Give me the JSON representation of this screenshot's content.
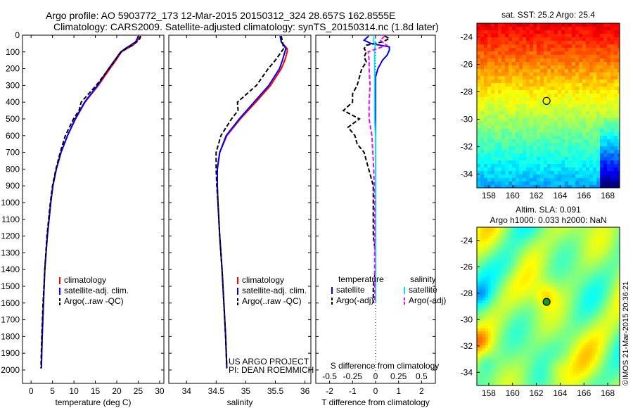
{
  "header": {
    "line1": "Argo profile: AO 5903772_173 12-Mar-2015 20150312_324 28.657S 162.8555E",
    "line2": "Climatology: CARS2009. Satellite-adjusted climatology: synTS_20150314.nc (1.8d later)"
  },
  "credit": "©IMOS 21-Mar-2015 20:36:21",
  "colors": {
    "climatology": "#ff0000",
    "satellite": "#0000ff",
    "argo": "#000000",
    "salinity_satellite": "#00e5ff",
    "salinity_argo": "#ff00ff"
  },
  "chart_data": [
    {
      "id": "temp",
      "type": "line",
      "xlabel": "temperature (deg C)",
      "ylabel": "",
      "xlim": [
        -2,
        31
      ],
      "ylim": [
        2080,
        0
      ],
      "xticks": [
        0,
        5,
        10,
        15,
        20,
        25,
        30
      ],
      "yticks": [
        0,
        100,
        200,
        300,
        400,
        500,
        600,
        700,
        800,
        900,
        1000,
        1100,
        1200,
        1300,
        1400,
        1500,
        1600,
        1700,
        1800,
        1900,
        2000
      ],
      "legend": [
        "climatology",
        "satellite-adj. clim.",
        "Argo(..raw -QC)"
      ],
      "series": [
        {
          "name": "climatology",
          "y": [
            5,
            20,
            40,
            60,
            80,
            100,
            150,
            200,
            300,
            400,
            500,
            600,
            700,
            800,
            900,
            1000,
            1200,
            1400,
            1600,
            1800,
            1990
          ],
          "x": [
            25.3,
            25.1,
            24.6,
            23.8,
            22.4,
            21.1,
            19.8,
            18.4,
            15.7,
            12.6,
            10.4,
            8.5,
            7.0,
            5.9,
            5.1,
            4.6,
            3.8,
            3.2,
            2.9,
            2.6,
            2.4
          ]
        },
        {
          "name": "satellite-adj. clim.",
          "y": [
            5,
            20,
            40,
            60,
            80,
            100,
            150,
            200,
            300,
            400,
            500,
            600,
            700,
            800,
            900,
            1000,
            1200,
            1400,
            1600,
            1800,
            1990
          ],
          "x": [
            25.0,
            24.8,
            24.4,
            23.2,
            22.0,
            20.9,
            19.5,
            18.1,
            15.5,
            12.5,
            10.3,
            8.5,
            7.0,
            5.9,
            5.1,
            4.6,
            3.8,
            3.2,
            2.9,
            2.6,
            2.4
          ]
        },
        {
          "name": "Argo(..raw -QC)",
          "y": [
            5,
            20,
            40,
            60,
            80,
            100,
            150,
            200,
            300,
            400,
            450,
            500,
            600,
            700,
            800,
            900,
            1000,
            1200,
            1400,
            1600,
            1800,
            1990
          ],
          "x": [
            25.6,
            25.4,
            24.7,
            23.6,
            22.2,
            21.0,
            19.6,
            18.2,
            15.2,
            11.7,
            11.2,
            9.9,
            8.0,
            6.8,
            5.8,
            5.0,
            4.5,
            3.7,
            3.2,
            2.8,
            2.5,
            2.3
          ]
        }
      ]
    },
    {
      "id": "sal",
      "type": "line",
      "xlabel": "salinity",
      "ylabel": "",
      "xlim": [
        33.7,
        36.1
      ],
      "ylim": [
        2080,
        0
      ],
      "xticks": [
        34,
        34.5,
        35,
        35.5,
        36
      ],
      "legend": [
        "climatology",
        "satellite-adj. clim.",
        "Argo(..raw -QC)"
      ],
      "series": [
        {
          "name": "climatology",
          "y": [
            5,
            40,
            80,
            100,
            150,
            200,
            300,
            400,
            500,
            600,
            700,
            800,
            900,
            1000,
            1200,
            1400,
            1600,
            1800,
            1990
          ],
          "x": [
            35.6,
            35.6,
            35.7,
            35.7,
            35.66,
            35.6,
            35.42,
            35.17,
            34.91,
            34.68,
            34.56,
            34.52,
            34.52,
            34.53,
            34.56,
            34.6,
            34.63,
            34.66,
            34.68
          ]
        },
        {
          "name": "satellite-adj. clim.",
          "y": [
            5,
            40,
            80,
            100,
            150,
            200,
            300,
            400,
            500,
            600,
            700,
            800,
            900,
            1000,
            1200,
            1400,
            1600,
            1800,
            1990
          ],
          "x": [
            35.58,
            35.6,
            35.68,
            35.66,
            35.62,
            35.57,
            35.39,
            35.14,
            34.89,
            34.67,
            34.56,
            34.52,
            34.52,
            34.53,
            34.56,
            34.6,
            34.63,
            34.66,
            34.68
          ]
        },
        {
          "name": "Argo(..raw -QC)",
          "y": [
            5,
            40,
            80,
            100,
            150,
            200,
            300,
            400,
            450,
            500,
            600,
            700,
            800,
            900,
            1000,
            1200,
            1400,
            1600,
            1800,
            1990
          ],
          "x": [
            35.6,
            35.62,
            35.64,
            35.6,
            35.5,
            35.38,
            35.18,
            34.86,
            34.87,
            34.76,
            34.58,
            34.5,
            34.5,
            34.51,
            34.53,
            34.56,
            34.6,
            34.63,
            34.66,
            34.68
          ]
        }
      ]
    },
    {
      "id": "diff",
      "type": "line",
      "xlabel": "T difference from climatology",
      "x2label": "S difference from climatology",
      "xlim": [
        -2.6,
        2.6
      ],
      "ylim": [
        2080,
        0
      ],
      "xticks": [
        -2,
        -1,
        0,
        1,
        2
      ],
      "x2ticks": [
        -0.5,
        -0.25,
        0,
        0.25,
        0.5
      ],
      "legend_titles": [
        "temperature",
        "salinity"
      ],
      "legend": [
        "satellite",
        "Argo(-adj)",
        "satellite",
        "Argo(-adj)"
      ],
      "series": [
        {
          "name": "satellite",
          "group": "temperature",
          "y": [
            5,
            30,
            50,
            70,
            90,
            120,
            150,
            200,
            250,
            300,
            400,
            500,
            600,
            700,
            800,
            900,
            1000,
            1200,
            1400,
            1600
          ],
          "x": [
            -0.3,
            -0.5,
            -0.2,
            0.6,
            0.6,
            0.5,
            0.3,
            0.1,
            0.0,
            0.0,
            0.0,
            0.0,
            0.0,
            0.0,
            0.0,
            0.0,
            0.0,
            0.0,
            0.0,
            0.0
          ]
        },
        {
          "name": "Argo(-adj)",
          "group": "temperature",
          "y": [
            5,
            20,
            40,
            60,
            80,
            100,
            130,
            160,
            200,
            250,
            300,
            350,
            400,
            450,
            500,
            550,
            600,
            650,
            700,
            750,
            800,
            850,
            900,
            1000,
            1100,
            1200,
            1300,
            1400,
            1500,
            1600
          ],
          "x": [
            0.4,
            0.6,
            0.3,
            -0.4,
            -0.5,
            -0.4,
            -0.5,
            -0.4,
            -0.6,
            -0.7,
            -0.8,
            -1.0,
            -1.0,
            -1.4,
            -0.7,
            -1.2,
            -0.9,
            -0.8,
            -0.5,
            -0.4,
            -0.3,
            -0.2,
            -0.1,
            -0.1,
            -0.1,
            -0.1,
            0.0,
            0.0,
            -0.1,
            -0.1
          ]
        },
        {
          "name": "satellite",
          "group": "salinity",
          "y": [
            5,
            40,
            60,
            80,
            100,
            200,
            300,
            400,
            500,
            600,
            700,
            800,
            900,
            1000,
            1200,
            1400,
            1600
          ],
          "x": [
            -0.02,
            -0.02,
            0.0,
            -0.01,
            -0.01,
            -0.01,
            -0.01,
            -0.01,
            -0.01,
            0.0,
            0.0,
            0.0,
            0.0,
            0.0,
            0.0,
            0.0,
            0.0
          ]
        },
        {
          "name": "Argo(-adj)",
          "group": "salinity",
          "y": [
            5,
            30,
            60,
            100,
            150,
            200,
            300,
            400,
            500,
            600,
            700,
            800,
            1000,
            1200,
            1400,
            1500,
            1600
          ],
          "x": [
            0.1,
            0.05,
            0.12,
            -0.08,
            -0.07,
            -0.07,
            -0.06,
            -0.07,
            -0.07,
            -0.04,
            -0.03,
            -0.02,
            -0.01,
            -0.01,
            -0.01,
            -0.01,
            -0.01
          ]
        }
      ]
    },
    {
      "id": "sst_map",
      "type": "heatmap",
      "title": "sat. SST: 25.2 Argo: 25.4",
      "x": [
        158,
        160,
        162,
        164,
        166,
        168
      ],
      "y": [
        -24,
        -26,
        -28,
        -30,
        -32,
        -34
      ],
      "xlim": [
        157,
        169
      ],
      "ylim": [
        -35,
        -23
      ],
      "marker": {
        "lon": 162.86,
        "lat": -28.66
      }
    },
    {
      "id": "sla_map",
      "type": "heatmap",
      "title": "Altim. SLA: 0.091",
      "subtitle": "Argo h1000: 0.033 h2000: NaN",
      "x": [
        158,
        160,
        162,
        164,
        166,
        168
      ],
      "y": [
        -24,
        -26,
        -28,
        -30,
        -32,
        -34
      ],
      "xlim": [
        157,
        169
      ],
      "ylim": [
        -35,
        -23
      ],
      "marker": {
        "lon": 162.86,
        "lat": -28.66
      }
    }
  ],
  "annotations": {
    "project": "US ARGO PROJECT",
    "pi": "PI: DEAN ROEMMICH"
  }
}
